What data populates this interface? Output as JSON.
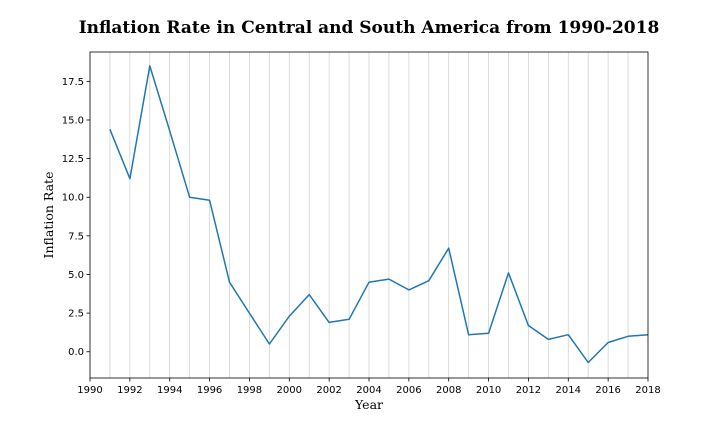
{
  "chart_data": {
    "type": "line",
    "title": "Inflation Rate in Central and South America from 1990-2018",
    "xlabel": "Year",
    "ylabel": "Inflation Rate",
    "xlim": [
      1990,
      2018
    ],
    "ylim": [
      -1.7,
      19.4
    ],
    "x_ticks": [
      1990,
      1992,
      1994,
      1996,
      1998,
      2000,
      2002,
      2004,
      2006,
      2008,
      2010,
      2012,
      2014,
      2016,
      2018
    ],
    "y_ticks": [
      0.0,
      2.5,
      5.0,
      7.5,
      10.0,
      12.5,
      15.0,
      17.5
    ],
    "y_tick_labels": [
      "0.0",
      "2.5",
      "5.0",
      "7.5",
      "10.0",
      "12.5",
      "15.0",
      "17.5"
    ],
    "grid": "vertical lines at every year",
    "line_color": "#1f77b4",
    "series": [
      {
        "x": [
          1991,
          1992,
          1993,
          1994,
          1995,
          1996,
          1997,
          1998,
          1999,
          2000,
          2001,
          2002,
          2003,
          2004,
          2005,
          2006,
          2007,
          2008,
          2009,
          2010,
          2011,
          2012,
          2013,
          2014,
          2015,
          2016,
          2017,
          2018
        ],
        "values": [
          14.4,
          11.2,
          18.5,
          14.3,
          10.0,
          9.8,
          4.5,
          2.5,
          0.5,
          2.3,
          3.7,
          1.9,
          2.1,
          4.5,
          4.7,
          4.0,
          4.6,
          6.7,
          1.1,
          1.2,
          5.1,
          1.7,
          0.8,
          1.1,
          -0.7,
          0.6,
          1.0,
          1.1
        ]
      }
    ]
  }
}
